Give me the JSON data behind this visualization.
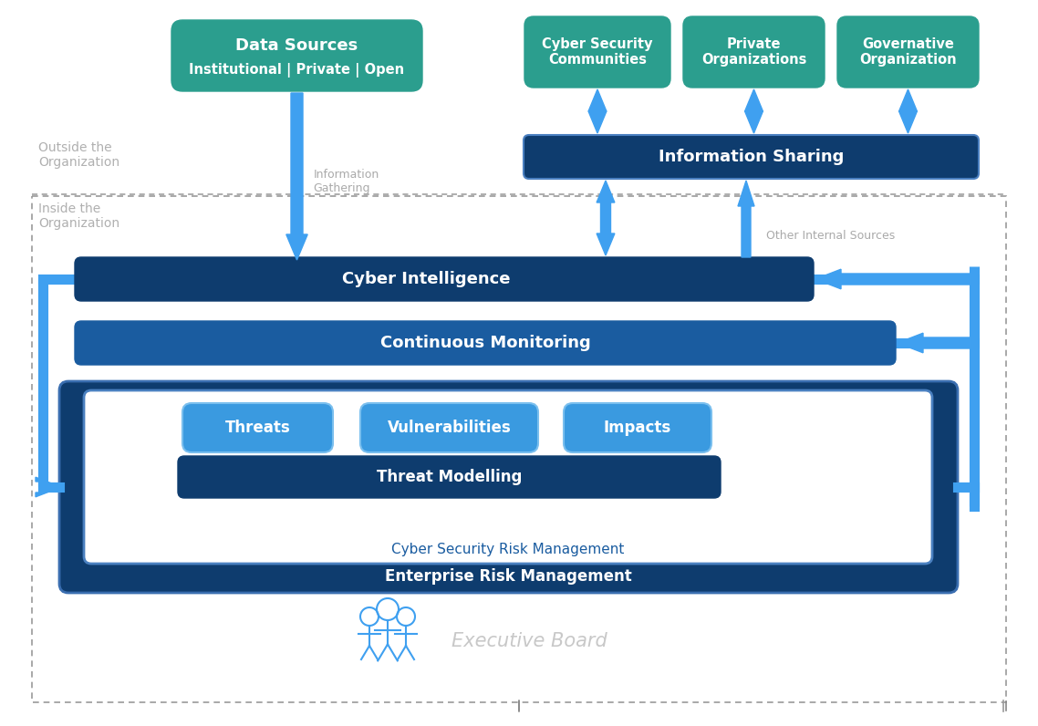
{
  "bg_color": "#ffffff",
  "teal_color": "#2b9e8e",
  "dark_blue": "#0e3c6e",
  "mid_blue": "#1a5ca0",
  "bright_blue": "#3fa0f0",
  "light_blue_btn": "#3a9ae0",
  "gray_text": "#b0b0b0",
  "white": "#ffffff",
  "outside_label": "Outside the\nOrganization",
  "inside_label": "Inside the\nOrganization",
  "data_sources_line1": "Data Sources",
  "data_sources_line2": "Institutional | Private | Open",
  "cyber_security_communities": "Cyber Security\nCommunities",
  "private_organizations": "Private\nOrganizations",
  "governative_organization": "Governative\nOrganization",
  "information_sharing": "Information Sharing",
  "information_gathering": "Information\nGathering",
  "other_internal_sources": "Other Internal Sources",
  "cyber_intelligence": "Cyber Intelligence",
  "continuous_monitoring": "Continuous Monitoring",
  "threats": "Threats",
  "vulnerabilities": "Vulnerabilities",
  "impacts": "Impacts",
  "threat_modelling": "Threat Modelling",
  "cyber_security_risk": "Cyber Security Risk Management",
  "enterprise_risk": "Enterprise Risk Management",
  "executive_board": "Executive Board"
}
